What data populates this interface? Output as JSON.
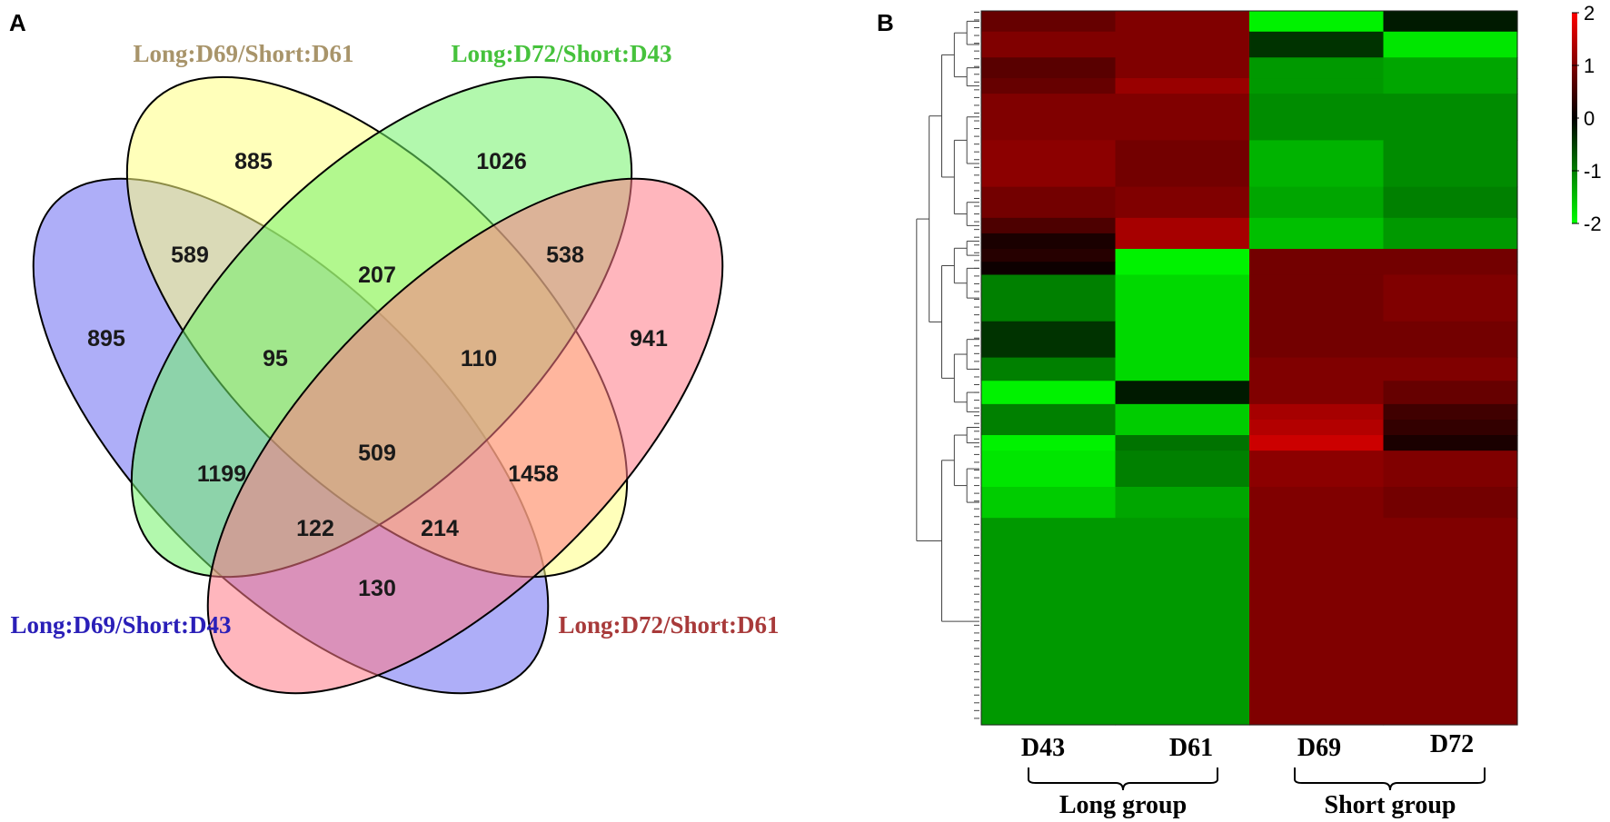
{
  "panels": {
    "a": "A",
    "b": "B"
  },
  "chart_data": [
    {
      "type": "venn",
      "sets": [
        {
          "id": "s1",
          "name": "Long:D69/Short:D43",
          "color": "#2a1fb8",
          "fill": "#6b6bf2"
        },
        {
          "id": "s2",
          "name": "Long:D69/Short:D61",
          "color": "#a8946a",
          "fill": "#ffff82"
        },
        {
          "id": "s3",
          "name": "Long:D72/Short:D43",
          "color": "#46c23c",
          "fill": "#72f26a"
        },
        {
          "id": "s4",
          "name": "Long:D72/Short:D61",
          "color": "#a83a3a",
          "fill": "#ff7a86"
        }
      ],
      "regions": [
        {
          "sets": [
            "s1"
          ],
          "count": "895"
        },
        {
          "sets": [
            "s2"
          ],
          "count": "885"
        },
        {
          "sets": [
            "s3"
          ],
          "count": "1026"
        },
        {
          "sets": [
            "s4"
          ],
          "count": "941"
        },
        {
          "sets": [
            "s1",
            "s2"
          ],
          "count": "589"
        },
        {
          "sets": [
            "s2",
            "s3"
          ],
          "count": "207"
        },
        {
          "sets": [
            "s3",
            "s4"
          ],
          "count": "538"
        },
        {
          "sets": [
            "s1",
            "s2",
            "s3"
          ],
          "count": "95"
        },
        {
          "sets": [
            "s2",
            "s3",
            "s4"
          ],
          "count": "110"
        },
        {
          "sets": [
            "s1",
            "s3"
          ],
          "count": "1199"
        },
        {
          "sets": [
            "s1",
            "s2",
            "s3",
            "s4"
          ],
          "count": "509"
        },
        {
          "sets": [
            "s2",
            "s4"
          ],
          "count": "1458"
        },
        {
          "sets": [
            "s1",
            "s3",
            "s4"
          ],
          "count": "122"
        },
        {
          "sets": [
            "s1",
            "s2",
            "s4"
          ],
          "count": "214"
        },
        {
          "sets": [
            "s1",
            "s4"
          ],
          "count": "130"
        }
      ]
    },
    {
      "type": "heatmap",
      "columns": [
        "D43",
        "D61",
        "D69",
        "D72"
      ],
      "groups": [
        {
          "label": "Long group",
          "columns": [
            "D43",
            "D61"
          ]
        },
        {
          "label": "Short group",
          "columns": [
            "D69",
            "D72"
          ]
        }
      ],
      "color_scale": {
        "range": [
          -2,
          2
        ],
        "ticks": [
          "2",
          "1",
          "0",
          "-1",
          "-2"
        ],
        "low_color": "#00ff00",
        "mid_color": "#000000",
        "high_color": "#ff0000"
      },
      "row_blocks": [
        {
          "rows": 8,
          "values": [
            0.8,
            1.0,
            -1.9,
            -0.2
          ]
        },
        {
          "rows": 10,
          "values": [
            1.0,
            1.0,
            -0.4,
            -1.8
          ]
        },
        {
          "rows": 8,
          "values": [
            0.7,
            1.0,
            -1.2,
            -1.3
          ]
        },
        {
          "rows": 6,
          "values": [
            0.8,
            1.2,
            -1.2,
            -1.3
          ]
        },
        {
          "rows": 18,
          "values": [
            1.0,
            1.0,
            -1.1,
            -1.1
          ]
        },
        {
          "rows": 18,
          "values": [
            1.1,
            0.9,
            -1.4,
            -1.1
          ]
        },
        {
          "rows": 12,
          "values": [
            0.9,
            1.0,
            -1.3,
            -1.0
          ]
        },
        {
          "rows": 6,
          "values": [
            0.6,
            1.3,
            -1.5,
            -1.2
          ]
        },
        {
          "rows": 6,
          "values": [
            0.2,
            1.3,
            -1.5,
            -1.2
          ]
        },
        {
          "rows": 5,
          "values": [
            0.3,
            -1.9,
            0.9,
            0.9
          ]
        },
        {
          "rows": 5,
          "values": [
            0.1,
            -1.9,
            0.9,
            0.9
          ]
        },
        {
          "rows": 18,
          "values": [
            -1.0,
            -1.7,
            0.9,
            1.0
          ]
        },
        {
          "rows": 14,
          "values": [
            -0.4,
            -1.7,
            0.9,
            0.9
          ]
        },
        {
          "rows": 9,
          "values": [
            -1.0,
            -1.7,
            1.0,
            1.0
          ]
        },
        {
          "rows": 9,
          "values": [
            -1.9,
            -0.2,
            1.0,
            0.8
          ]
        },
        {
          "rows": 6,
          "values": [
            -1.0,
            -1.6,
            1.3,
            0.5
          ]
        },
        {
          "rows": 6,
          "values": [
            -1.0,
            -1.6,
            1.4,
            0.4
          ]
        },
        {
          "rows": 6,
          "values": [
            -1.9,
            -0.9,
            1.6,
            0.2
          ]
        },
        {
          "rows": 14,
          "values": [
            -1.8,
            -1.0,
            1.1,
            1.0
          ]
        },
        {
          "rows": 12,
          "values": [
            -1.6,
            -1.3,
            1.0,
            0.9
          ]
        },
        {
          "rows": 80,
          "values": [
            -1.2,
            -1.2,
            1.0,
            1.0
          ]
        }
      ]
    }
  ]
}
